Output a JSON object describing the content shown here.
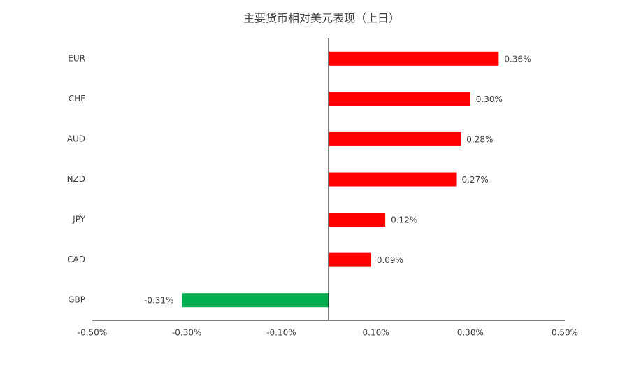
{
  "chart_data": {
    "type": "hbar",
    "title": "主要货币相对美元表现（上日）",
    "categories": [
      "EUR",
      "CHF",
      "AUD",
      "NZD",
      "JPY",
      "CAD",
      "GBP"
    ],
    "values": [
      0.36,
      0.3,
      0.28,
      0.27,
      0.12,
      0.09,
      -0.31
    ],
    "value_labels": [
      "0.36%",
      "0.30%",
      "0.28%",
      "0.27%",
      "0.12%",
      "0.09%",
      "-0.31%"
    ],
    "colors": [
      "#ff0000",
      "#ff0000",
      "#ff0000",
      "#ff0000",
      "#ff0000",
      "#ff0000",
      "#00b050"
    ],
    "xlim": [
      -0.5,
      0.5
    ],
    "xticks": [
      {
        "value": -0.5,
        "label": "-0.50%"
      },
      {
        "value": -0.3,
        "label": "-0.30%"
      },
      {
        "value": -0.1,
        "label": "-0.10%"
      },
      {
        "value": 0.1,
        "label": "0.10%"
      },
      {
        "value": 0.3,
        "label": "0.30%"
      },
      {
        "value": 0.5,
        "label": "0.50%"
      }
    ]
  }
}
